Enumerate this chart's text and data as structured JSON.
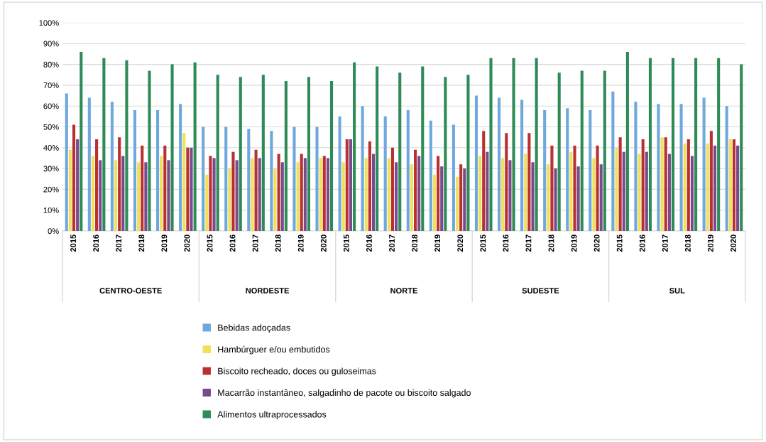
{
  "chart_data": {
    "type": "bar",
    "categories": [
      "2015",
      "2016",
      "2017",
      "2018",
      "2019",
      "2020",
      "2015",
      "2016",
      "2017",
      "2018",
      "2019",
      "2020",
      "2015",
      "2016",
      "2017",
      "2018",
      "2019",
      "2020",
      "2015",
      "2016",
      "2017",
      "2018",
      "2019",
      "2020",
      "2015",
      "2016",
      "2017",
      "2018",
      "2019",
      "2020"
    ],
    "annotations": [
      "CENTRO-OESTE",
      "NORDESTE",
      "NORTE",
      "SUDESTE",
      "SUL"
    ],
    "series": [
      {
        "name": "Bebidas adoçadas",
        "color": "#6fa8dc",
        "values": [
          66,
          64,
          62,
          58,
          58,
          61,
          50,
          50,
          49,
          48,
          50,
          50,
          55,
          60,
          55,
          58,
          53,
          51,
          65,
          64,
          63,
          58,
          59,
          58,
          67,
          62,
          61,
          61,
          64,
          60
        ]
      },
      {
        "name": "Hambúrguer e/ou embutidos",
        "color": "#f1e05a",
        "values": [
          39,
          36,
          34,
          33,
          36,
          47,
          27,
          30,
          35,
          30,
          33,
          35,
          33,
          35,
          35,
          32,
          27,
          26,
          36,
          35,
          37,
          32,
          38,
          35,
          40,
          37,
          45,
          42,
          42,
          44
        ]
      },
      {
        "name": "Biscoito recheado, doces ou guloseimas",
        "color": "#b8312f",
        "values": [
          51,
          44,
          45,
          41,
          41,
          40,
          36,
          38,
          39,
          37,
          37,
          36,
          44,
          43,
          40,
          39,
          36,
          32,
          48,
          47,
          47,
          41,
          41,
          41,
          45,
          44,
          45,
          44,
          48,
          44
        ]
      },
      {
        "name": "Macarrão instantâneo, salgadinho de pacote ou biscoito salgado",
        "color": "#7a4a8c",
        "values": [
          44,
          34,
          36,
          33,
          34,
          40,
          35,
          34,
          35,
          33,
          35,
          35,
          44,
          37,
          33,
          36,
          31,
          30,
          38,
          34,
          33,
          30,
          31,
          32,
          38,
          38,
          37,
          36,
          41,
          41
        ]
      },
      {
        "name": "Alimentos ultraprocessados",
        "color": "#2e8b57",
        "values": [
          86,
          83,
          82,
          77,
          80,
          81,
          75,
          74,
          75,
          72,
          74,
          72,
          81,
          79,
          76,
          79,
          74,
          75,
          83,
          83,
          83,
          76,
          77,
          77,
          86,
          83,
          83,
          83,
          83,
          80
        ]
      }
    ],
    "ylim": [
      0,
      100
    ],
    "yticks": [
      {
        "value": 0,
        "label": "0%"
      },
      {
        "value": 10,
        "label": "10%"
      },
      {
        "value": 20,
        "label": "20%"
      },
      {
        "value": 30,
        "label": "30%"
      },
      {
        "value": 40,
        "label": "40%"
      },
      {
        "value": 50,
        "label": "50%"
      },
      {
        "value": 60,
        "label": "60%"
      },
      {
        "value": 70,
        "label": "70%"
      },
      {
        "value": 80,
        "label": "80%"
      },
      {
        "value": 90,
        "label": "90%"
      },
      {
        "value": 100,
        "label": "100%"
      }
    ],
    "grid": "y",
    "legend": "bottom"
  }
}
